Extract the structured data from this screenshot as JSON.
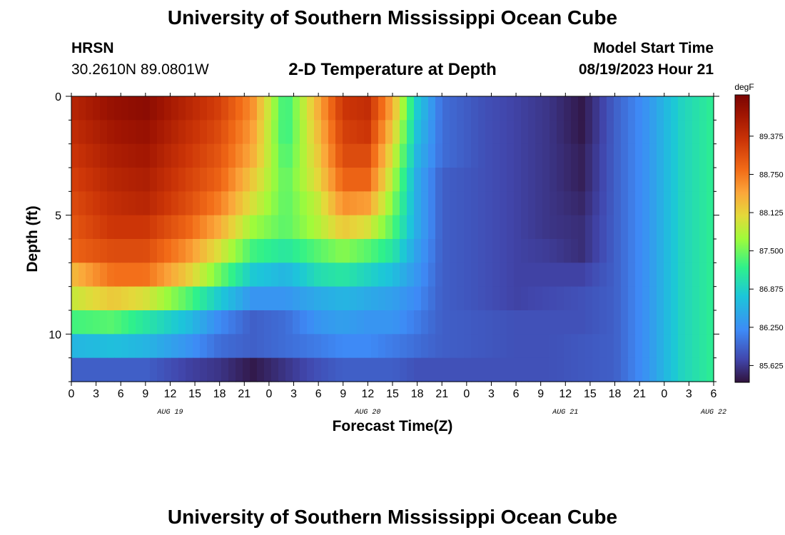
{
  "header": {
    "title": "University of Southern Mississippi Ocean Cube",
    "station": "HRSN",
    "coords": "30.2610N  89.0801W",
    "plot_title": "2-D Temperature at Depth",
    "model_label": "Model Start Time",
    "model_time": "08/19/2023 Hour 21"
  },
  "footer": {
    "title": "University of Southern Mississippi Ocean Cube"
  },
  "chart_data": {
    "type": "heatmap",
    "title": "2-D Temperature at Depth",
    "xlabel": "Forecast Time(Z)",
    "ylabel": "Depth (ft)",
    "x_tick_labels": [
      "0",
      "3",
      "6",
      "9",
      "12",
      "15",
      "18",
      "21",
      "0",
      "3",
      "6",
      "9",
      "12",
      "15",
      "18",
      "21",
      "0",
      "3",
      "6",
      "9",
      "12",
      "15",
      "18",
      "21",
      "0",
      "3",
      "6"
    ],
    "x_hours_range": [
      0,
      78
    ],
    "day_labels": [
      {
        "label": "AUG 19",
        "hour": 12
      },
      {
        "label": "AUG 20",
        "hour": 36
      },
      {
        "label": "AUG 21",
        "hour": 60
      },
      {
        "label": "AUG 22",
        "hour": 78
      }
    ],
    "y_tick_labels": [
      "0",
      "5",
      "10"
    ],
    "ylim": [
      0,
      12
    ],
    "y_reversed": true,
    "colorbar": {
      "unit": "degF",
      "range": [
        85.35,
        90.05
      ],
      "tick_labels": [
        "89.375",
        "88.750",
        "88.125",
        "87.500",
        "86.875",
        "86.250",
        "85.625"
      ],
      "tick_values": [
        89.375,
        88.75,
        88.125,
        87.5,
        86.875,
        86.25,
        85.625
      ]
    },
    "depth_levels": [
      0,
      1,
      2,
      3,
      4,
      5,
      6,
      7,
      8,
      9,
      10,
      11
    ],
    "time_points": [
      0,
      5,
      9,
      14,
      18,
      22,
      26,
      30,
      33,
      36,
      39,
      42,
      45,
      50,
      54,
      58,
      62,
      66,
      70,
      74,
      78
    ],
    "values": [
      [
        89.5,
        89.8,
        89.9,
        89.5,
        89.2,
        88.6,
        87.2,
        88.4,
        89.3,
        89.4,
        88.4,
        86.8,
        86.0,
        85.8,
        85.7,
        85.6,
        85.4,
        85.9,
        86.3,
        86.9,
        87.2
      ],
      [
        89.4,
        89.7,
        89.8,
        89.4,
        89.1,
        88.5,
        87.2,
        88.3,
        89.2,
        89.3,
        88.2,
        86.7,
        86.0,
        85.8,
        85.7,
        85.6,
        85.4,
        85.9,
        86.3,
        86.9,
        87.2
      ],
      [
        89.3,
        89.6,
        89.7,
        89.3,
        89.0,
        88.4,
        87.3,
        88.2,
        89.1,
        89.1,
        88.0,
        86.6,
        86.0,
        85.8,
        85.7,
        85.6,
        85.45,
        85.9,
        86.3,
        86.9,
        87.2
      ],
      [
        89.2,
        89.5,
        89.6,
        89.2,
        88.9,
        88.2,
        87.4,
        88.1,
        88.9,
        88.9,
        87.8,
        86.5,
        85.9,
        85.8,
        85.7,
        85.6,
        85.45,
        85.9,
        86.3,
        86.9,
        87.2
      ],
      [
        89.1,
        89.4,
        89.5,
        89.1,
        88.7,
        88.0,
        87.4,
        87.9,
        88.6,
        88.5,
        87.6,
        86.5,
        85.9,
        85.8,
        85.7,
        85.6,
        85.5,
        85.9,
        86.3,
        86.9,
        87.2
      ],
      [
        89.0,
        89.3,
        89.3,
        88.9,
        88.4,
        87.7,
        87.4,
        87.8,
        88.2,
        88.0,
        87.4,
        86.5,
        85.9,
        85.8,
        85.7,
        85.6,
        85.55,
        85.9,
        86.3,
        86.9,
        87.2
      ],
      [
        88.9,
        89.1,
        89.1,
        88.6,
        88.0,
        87.3,
        87.1,
        87.4,
        87.6,
        87.4,
        87.1,
        86.4,
        85.9,
        85.8,
        85.7,
        85.65,
        85.55,
        85.9,
        86.3,
        86.9,
        87.2
      ],
      [
        88.3,
        88.8,
        88.8,
        88.2,
        87.5,
        86.8,
        86.6,
        87.0,
        87.1,
        86.9,
        86.7,
        86.3,
        85.9,
        85.8,
        85.7,
        85.7,
        85.7,
        85.9,
        86.3,
        86.9,
        87.2
      ],
      [
        87.9,
        88.2,
        88.0,
        87.4,
        86.8,
        86.3,
        86.3,
        86.5,
        86.6,
        86.5,
        86.4,
        86.2,
        85.9,
        85.8,
        85.7,
        85.75,
        85.8,
        85.9,
        86.3,
        86.9,
        87.2
      ],
      [
        87.3,
        87.4,
        87.1,
        86.7,
        86.2,
        85.9,
        86.0,
        86.3,
        86.4,
        86.3,
        86.3,
        86.1,
        85.9,
        85.85,
        85.8,
        85.8,
        85.8,
        85.9,
        86.3,
        86.9,
        87.2
      ],
      [
        86.6,
        86.7,
        86.6,
        86.3,
        86.0,
        85.9,
        86.0,
        86.1,
        86.2,
        86.2,
        86.1,
        86.0,
        85.9,
        85.85,
        85.8,
        85.8,
        85.85,
        85.9,
        86.3,
        86.9,
        87.2
      ],
      [
        85.9,
        85.9,
        85.9,
        85.7,
        85.6,
        85.4,
        85.6,
        85.8,
        85.9,
        85.9,
        85.9,
        85.8,
        85.8,
        85.8,
        85.8,
        85.8,
        85.85,
        85.9,
        86.3,
        86.9,
        87.2
      ]
    ]
  }
}
